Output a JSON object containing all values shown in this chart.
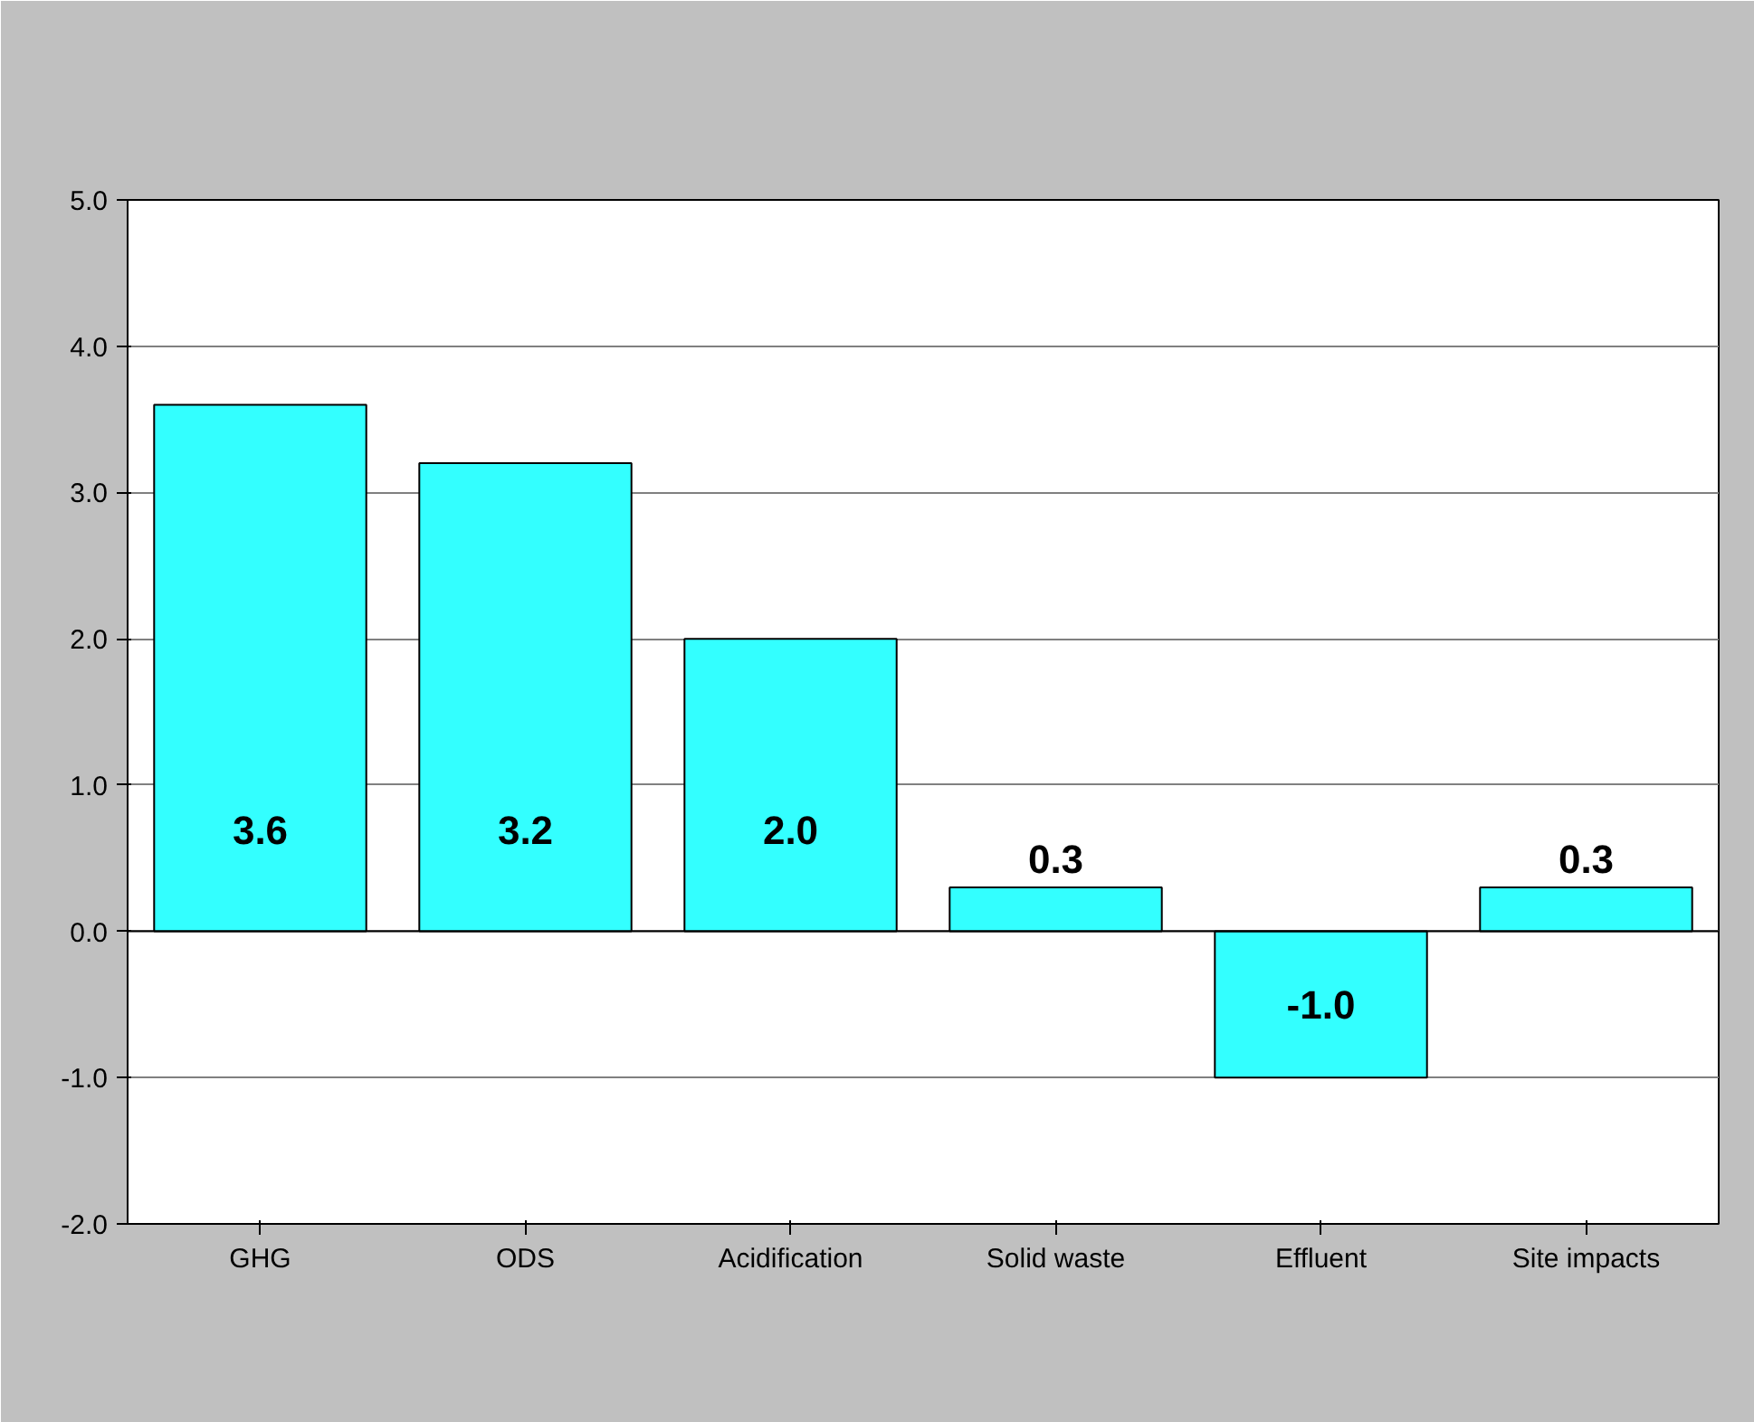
{
  "chart_data": {
    "type": "bar",
    "categories": [
      "GHG",
      "ODS",
      "Acidification",
      "Solid waste",
      "Effluent",
      "Site impacts"
    ],
    "values": [
      3.6,
      3.2,
      2.0,
      0.3,
      -1.0,
      0.3
    ],
    "color": "#33ffff",
    "value_labels": [
      "3.6",
      "3.2",
      "2.0",
      "0.3",
      "-1.0",
      "0.3"
    ],
    "ylim": [
      -2.0,
      5.0
    ],
    "yticks": [
      {
        "value": -2,
        "label": "-2.0"
      },
      {
        "value": -1,
        "label": "-1.0"
      },
      {
        "value": 0,
        "label": "0.0"
      },
      {
        "value": 1,
        "label": "1.0"
      },
      {
        "value": 2,
        "label": "2.0"
      },
      {
        "value": 3,
        "label": "3.0"
      },
      {
        "value": 4,
        "label": "4.0"
      },
      {
        "value": 5,
        "label": "5.0"
      }
    ],
    "grid": "y"
  }
}
